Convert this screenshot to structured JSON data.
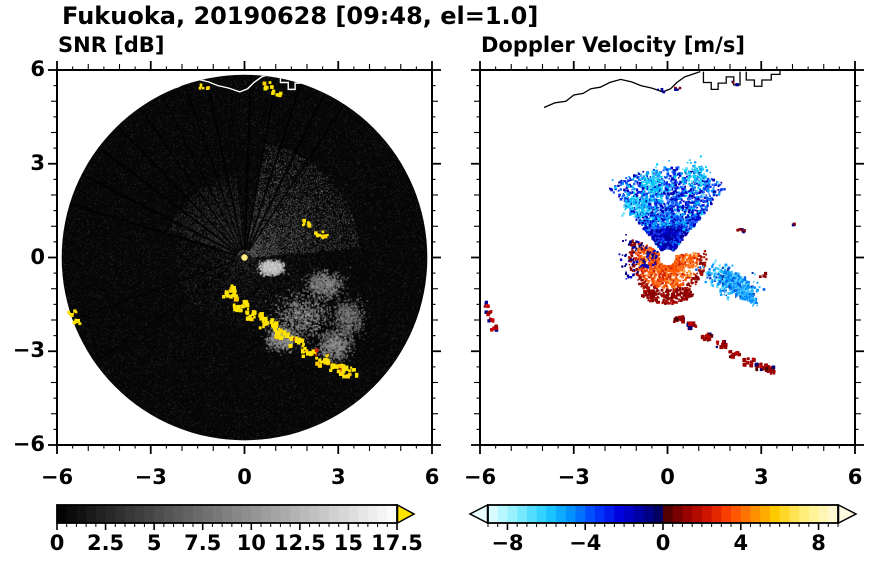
{
  "title": "Fukuoka, 20190628 [09:48, el=1.0]",
  "chart_data": [
    {
      "type": "heatmap",
      "title": "SNR [dB]",
      "xlabel": "",
      "ylabel": "",
      "xlim": [
        -6,
        6
      ],
      "ylim": [
        -6,
        6
      ],
      "xticks": [
        -6,
        -3,
        0,
        3,
        6
      ],
      "xtick_labels": [
        "−6",
        "−3",
        "0",
        "3",
        "6"
      ],
      "yticks": [
        -6,
        -3,
        0,
        3,
        6
      ],
      "ytick_labels": [
        "−6",
        "−3",
        "0",
        "3",
        "6"
      ],
      "grid": false,
      "colorbar": {
        "min": 0,
        "max": 17.5,
        "tick_values": [
          0,
          2.5,
          5,
          7.5,
          10,
          12.5,
          15,
          17.5
        ],
        "tick_labels": [
          "0",
          "2.5",
          "5",
          "7.5",
          "10",
          "12.5",
          "15",
          "17.5"
        ],
        "colormap": "grayscale (0 = black, 17.5 = white)",
        "overflow_color": "#ffe400"
      },
      "description": "Radar SNR scan: dark disk of radius ~5.9 centered on the radar at (0,0); faint gray noise over the disk, brighter echo haze northeast and northwest of center, gray echo clouds around (2,-2); thin black shadow spokes radiate from the center; saturated yellow (>17.5 dB) speckle arc from (-0.6,-1.2) to (3.3,-3.6) plus isolated yellow patches; white coastline drawn along the top of the disk",
      "coastline": [
        [
          [
            -3.95,
            4.8
          ],
          [
            -3.6,
            4.95
          ],
          [
            -3.25,
            5.0
          ],
          [
            -3.0,
            5.2
          ],
          [
            -2.7,
            5.25
          ],
          [
            -2.45,
            5.4
          ],
          [
            -2.15,
            5.45
          ],
          [
            -1.85,
            5.6
          ],
          [
            -1.5,
            5.7
          ],
          [
            -1.15,
            5.62
          ],
          [
            -0.85,
            5.5
          ],
          [
            -0.5,
            5.42
          ],
          [
            -0.15,
            5.3
          ],
          [
            0.1,
            5.4
          ],
          [
            0.3,
            5.6
          ],
          [
            0.55,
            5.78
          ],
          [
            0.85,
            5.88
          ],
          [
            1.05,
            5.95
          ]
        ],
        [
          [
            1.15,
            5.95
          ],
          [
            1.15,
            5.6
          ],
          [
            1.4,
            5.6
          ],
          [
            1.4,
            5.38
          ],
          [
            1.62,
            5.38
          ],
          [
            1.62,
            5.58
          ],
          [
            1.88,
            5.58
          ],
          [
            1.88,
            5.78
          ],
          [
            2.12,
            5.78
          ],
          [
            2.12,
            5.52
          ],
          [
            2.32,
            5.52
          ],
          [
            2.32,
            5.95
          ]
        ],
        [
          [
            2.52,
            5.95
          ],
          [
            2.52,
            5.68
          ],
          [
            2.78,
            5.68
          ],
          [
            2.78,
            5.48
          ],
          [
            3.02,
            5.48
          ],
          [
            3.02,
            5.68
          ],
          [
            3.32,
            5.68
          ],
          [
            3.32,
            5.86
          ],
          [
            3.6,
            5.86
          ],
          [
            3.6,
            6.0
          ]
        ]
      ],
      "features": {
        "disk": {
          "center": [
            0,
            0
          ],
          "radius": 5.85,
          "color": "#060606"
        },
        "echo_blobs": [
          {
            "x": 1.85,
            "y": -1.85,
            "rx": 0.95,
            "ry": 0.75,
            "g": 150
          },
          {
            "x": 2.55,
            "y": -0.85,
            "rx": 0.6,
            "ry": 0.45,
            "g": 130
          },
          {
            "x": 1.15,
            "y": -2.55,
            "rx": 0.5,
            "ry": 0.4,
            "g": 140
          },
          {
            "x": 2.85,
            "y": -2.8,
            "rx": 0.55,
            "ry": 0.5,
            "g": 135
          },
          {
            "x": 3.3,
            "y": -1.9,
            "rx": 0.5,
            "ry": 0.6,
            "g": 115
          },
          {
            "x": 0.85,
            "y": -0.3,
            "rx": 0.4,
            "ry": 0.22,
            "g": 195
          }
        ],
        "shadow_spokes_deg": [
          57,
          64,
          72,
          80,
          88,
          95,
          102,
          109,
          117,
          125,
          134,
          143,
          153,
          163,
          200,
          215
        ],
        "yellow_arc": [
          [
            -0.55,
            -1.15
          ],
          [
            -0.15,
            -1.5
          ],
          [
            0.25,
            -1.8
          ],
          [
            0.7,
            -2.05
          ],
          [
            1.15,
            -2.4
          ],
          [
            1.6,
            -2.65
          ],
          [
            2.05,
            -2.95
          ],
          [
            2.5,
            -3.25
          ],
          [
            2.95,
            -3.5
          ],
          [
            3.3,
            -3.6
          ]
        ],
        "yellow_patches": [
          [
            2.35,
            0.8
          ],
          [
            2.6,
            0.7
          ],
          [
            1.0,
            5.3
          ],
          [
            0.72,
            5.55
          ],
          [
            -1.35,
            5.5
          ],
          [
            -5.55,
            -1.7
          ],
          [
            -5.45,
            -2.05
          ],
          [
            -0.5,
            -0.95
          ],
          [
            1.9,
            1.15
          ]
        ]
      }
    },
    {
      "type": "scatter",
      "title": "Doppler Velocity [m/s]",
      "xlabel": "",
      "ylabel": "",
      "xlim": [
        -6,
        6
      ],
      "ylim": [
        -6,
        6
      ],
      "xticks": [
        -6,
        -3,
        0,
        3,
        6
      ],
      "xtick_labels": [
        "−6",
        "−3",
        "0",
        "3",
        "6"
      ],
      "grid": false,
      "colorbar": {
        "min": -9,
        "max": 9,
        "tick_values": [
          -8,
          -4,
          0,
          4,
          8
        ],
        "tick_labels": [
          "−8",
          "−4",
          "0",
          "4",
          "8"
        ],
        "colormap": "diverging cyan-blue-navy (negative) / dark red-red-orange-yellow (positive), arrows on both ends",
        "stops": [
          {
            "v": -9,
            "c": "#eaffff"
          },
          {
            "v": -7.5,
            "c": "#86eeff"
          },
          {
            "v": -6,
            "c": "#23ccff"
          },
          {
            "v": -4.8,
            "c": "#0095ff"
          },
          {
            "v": -3.6,
            "c": "#0044ff"
          },
          {
            "v": -2.2,
            "c": "#0000dd"
          },
          {
            "v": -1,
            "c": "#000099"
          },
          {
            "v": -0.25,
            "c": "#000060"
          },
          {
            "v": 0.25,
            "c": "#550000"
          },
          {
            "v": 1,
            "c": "#8b0000"
          },
          {
            "v": 2.2,
            "c": "#cc1100"
          },
          {
            "v": 3.4,
            "c": "#ff4400"
          },
          {
            "v": 4.6,
            "c": "#ff8800"
          },
          {
            "v": 5.8,
            "c": "#ffcc00"
          },
          {
            "v": 7.2,
            "c": "#ffee77"
          },
          {
            "v": 9,
            "c": "#fffbe0"
          }
        ]
      },
      "description": "Doppler velocity scatter on white background with black coastline at top: dense blue/navy fan of approaching echoes spreading upward from the radar between ~50° and 130° out to r≈3; small white hole at the radar position; orange/red receding echoes in a cluster left of and below center (r≈0.3–1.3) ringed by dark red below; light-blue patch near (2,-0.9); dark red speckle arc from (0.3,-2) to (3.3,-3.6); red marks at the left edge near x≈-5.7 and isolated dark specks near (2.4,0.9) and along the coastline",
      "features": {
        "blue_fan": {
          "center": [
            0,
            0
          ],
          "angle_deg": [
            50,
            130
          ],
          "rmax": 2.9
        },
        "fan_rays_deg": [
          55,
          62,
          70,
          77,
          84,
          90,
          96,
          103,
          110,
          118,
          126
        ],
        "cyan_wisps": [
          {
            "x": -0.9,
            "y": 1.6,
            "rx": 0.5,
            "ry": 0.4
          },
          {
            "x": -0.45,
            "y": 2.3,
            "rx": 0.4,
            "ry": 0.5
          },
          {
            "x": 0.9,
            "y": 2.6,
            "rx": 0.45,
            "ry": 0.55
          }
        ],
        "orange_cluster": {
          "angle_deg": [
            150,
            370
          ],
          "rmin": 0.28,
          "rmax": 1.25
        },
        "red_bottom_arc": {
          "angle_deg": [
            235,
            305
          ],
          "rmin": 1.2,
          "rmax": 1.5
        },
        "blue_patch": {
          "x": 2.05,
          "y": -0.8,
          "rx": 0.85,
          "ry": 0.42,
          "rot_deg": -25
        },
        "red_arc": [
          [
            0.35,
            -1.95
          ],
          [
            0.8,
            -2.2
          ],
          [
            1.25,
            -2.55
          ],
          [
            1.7,
            -2.8
          ],
          [
            2.15,
            -3.1
          ],
          [
            2.6,
            -3.35
          ],
          [
            3.0,
            -3.5
          ],
          [
            3.3,
            -3.6
          ]
        ],
        "left_edge_marks": [
          [
            -5.78,
            -1.5
          ],
          [
            -5.72,
            -1.75
          ],
          [
            -5.65,
            -2.0
          ],
          [
            -5.55,
            -2.25
          ]
        ],
        "isolated_marks": [
          {
            "x": 2.35,
            "y": 0.85,
            "n": 7,
            "red_frac": 0.7
          },
          {
            "x": 0.33,
            "y": 5.42,
            "n": 5,
            "red_frac": 0.5
          },
          {
            "x": 2.18,
            "y": 5.58,
            "n": 4,
            "red_frac": 0.8
          },
          {
            "x": -0.2,
            "y": 5.32,
            "n": 3,
            "red_frac": 0.6
          },
          {
            "x": 3.05,
            "y": -0.55,
            "n": 4,
            "red_frac": 0.85
          },
          {
            "x": 4.05,
            "y": 1.05,
            "n": 3,
            "red_frac": 0.9
          }
        ]
      }
    }
  ]
}
